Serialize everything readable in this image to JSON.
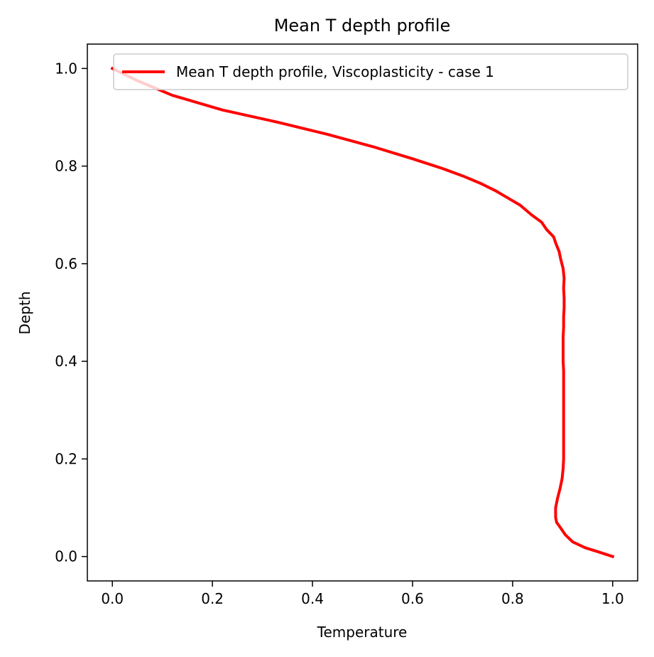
{
  "chart_data": {
    "type": "line",
    "title": "Mean T depth profile",
    "xlabel": "Temperature",
    "ylabel": "Depth",
    "xlim": [
      -0.05,
      1.05
    ],
    "ylim": [
      -0.05,
      1.05
    ],
    "xticks": [
      0.0,
      0.2,
      0.4,
      0.6,
      0.8,
      1.0
    ],
    "yticks": [
      0.0,
      0.2,
      0.4,
      0.6,
      0.8,
      1.0
    ],
    "xtick_labels": [
      "0.0",
      "0.2",
      "0.4",
      "0.6",
      "0.8",
      "1.0"
    ],
    "ytick_labels": [
      "0.0",
      "0.2",
      "0.4",
      "0.6",
      "0.8",
      "1.0"
    ],
    "grid": false,
    "legend_position": "top-right",
    "series": [
      {
        "name": "Mean T depth profile, Viscoplasticity - case 1",
        "color": "#ff0000",
        "x": [
          1.0,
          0.97,
          0.945,
          0.92,
          0.905,
          0.895,
          0.888,
          0.886,
          0.886,
          0.89,
          0.895,
          0.899,
          0.901,
          0.902,
          0.902,
          0.902,
          0.902,
          0.902,
          0.902,
          0.902,
          0.901,
          0.901,
          0.901,
          0.902,
          0.902,
          0.903,
          0.903,
          0.902,
          0.903,
          0.901,
          0.896,
          0.893,
          0.887,
          0.882,
          0.868,
          0.858,
          0.838,
          0.815,
          0.79,
          0.765,
          0.735,
          0.7,
          0.66,
          0.6,
          0.52,
          0.43,
          0.33,
          0.22,
          0.12,
          0.05,
          0.01,
          0.0
        ],
        "y": [
          0.0,
          0.01,
          0.018,
          0.03,
          0.045,
          0.06,
          0.07,
          0.08,
          0.1,
          0.12,
          0.14,
          0.16,
          0.18,
          0.2,
          0.23,
          0.26,
          0.29,
          0.32,
          0.35,
          0.38,
          0.4,
          0.42,
          0.45,
          0.47,
          0.49,
          0.51,
          0.53,
          0.55,
          0.57,
          0.59,
          0.61,
          0.625,
          0.64,
          0.655,
          0.67,
          0.685,
          0.7,
          0.72,
          0.735,
          0.75,
          0.765,
          0.78,
          0.795,
          0.815,
          0.84,
          0.865,
          0.89,
          0.915,
          0.945,
          0.975,
          0.995,
          1.0
        ]
      }
    ]
  }
}
